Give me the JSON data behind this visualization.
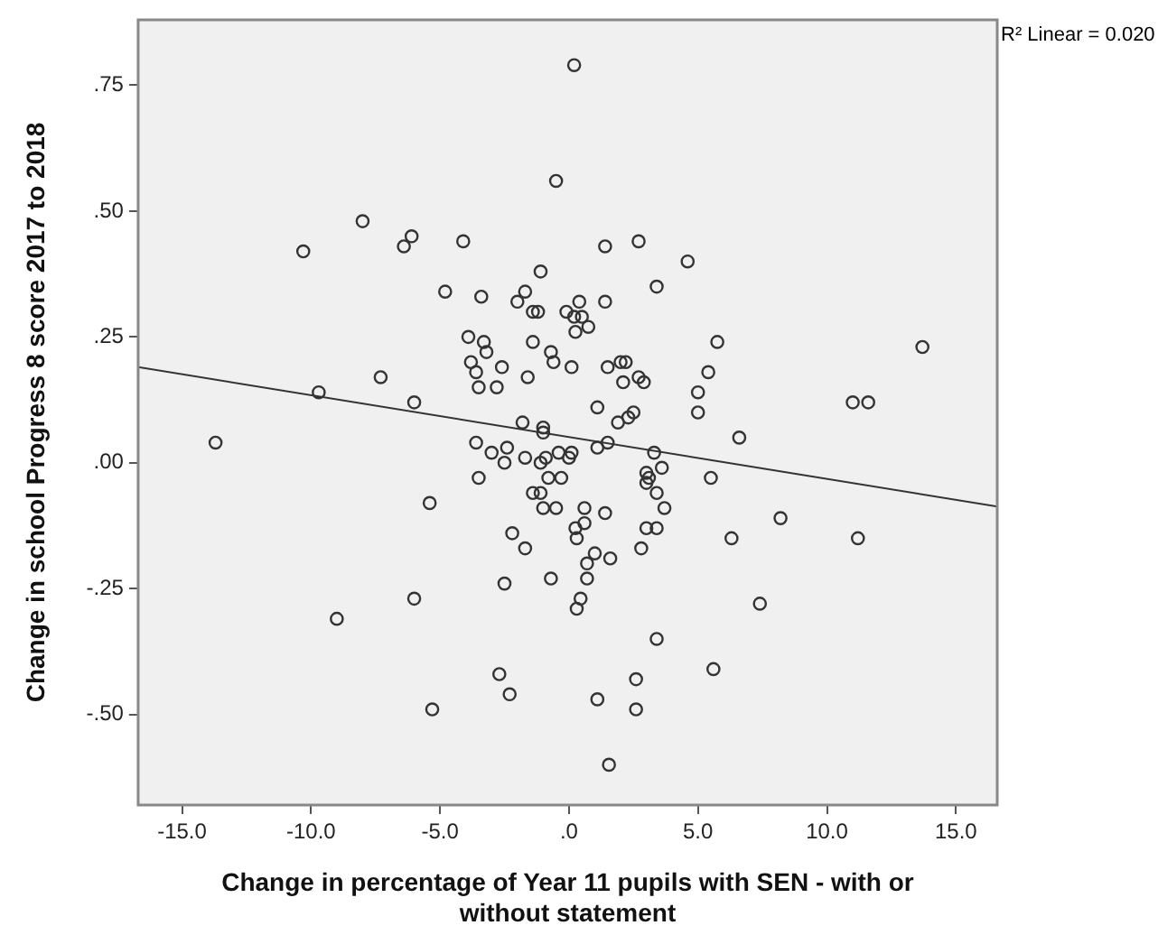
{
  "chart_data": {
    "type": "scatter",
    "xlabel": "Change in percentage of Year 11 pupils with SEN - with or without statement",
    "ylabel": "Change in school Progress 8 score 2017 to 2018",
    "xlim": [
      -16.7,
      16.6
    ],
    "ylim": [
      -0.68,
      0.88
    ],
    "xticks": [
      {
        "value": -15,
        "label": "-15.0"
      },
      {
        "value": -10,
        "label": "-10.0"
      },
      {
        "value": -5,
        "label": "-5.0"
      },
      {
        "value": 0,
        "label": ".0"
      },
      {
        "value": 5,
        "label": "5.0"
      },
      {
        "value": 10,
        "label": "10.0"
      },
      {
        "value": 15,
        "label": "15.0"
      }
    ],
    "yticks": [
      {
        "value": -0.5,
        "label": "-.50"
      },
      {
        "value": -0.25,
        "label": "-.25"
      },
      {
        "value": 0,
        "label": ".00"
      },
      {
        "value": 0.25,
        "label": ".25"
      },
      {
        "value": 0.5,
        "label": ".50"
      },
      {
        "value": 0.75,
        "label": ".75"
      }
    ],
    "grid": false,
    "legend": false,
    "annotations": [
      "R² Linear = 0.020"
    ],
    "series": [
      {
        "color": "#333333",
        "marker": "circle",
        "x": [
          0.2,
          -0.5,
          -10.3,
          -8.0,
          -6.4,
          -6.1,
          -4.1,
          -4.8,
          -3.4,
          -2.0,
          -1.7,
          -1.1,
          -1.4,
          -1.2,
          -0.1,
          0.4,
          0.2,
          0.5,
          0.75,
          0.25,
          1.4,
          1.4,
          2.7,
          4.6,
          3.4,
          5.75,
          5.4,
          5.0,
          5.0,
          6.6,
          -3.9,
          -3.3,
          -3.2,
          -3.8,
          -3.6,
          -3.5,
          -2.8,
          -2.6,
          -1.4,
          -1.6,
          -0.7,
          -0.6,
          0.1,
          1.5,
          2.0,
          2.2,
          2.1,
          2.7,
          2.9,
          1.1,
          1.9,
          2.3,
          2.5,
          -6.0,
          -9.7,
          -7.3,
          -1.8,
          -1.0,
          -1.0,
          -3.6,
          -3.0,
          -2.4,
          -2.5,
          -1.7,
          -1.1,
          -0.9,
          -0.4,
          0.0,
          0.1,
          1.1,
          1.5,
          3.3,
          3.6,
          -3.5,
          -0.8,
          -0.3,
          3.0,
          3.1,
          3.0,
          5.5,
          -5.4,
          -1.4,
          -1.1,
          -1.0,
          -0.5,
          0.6,
          1.4,
          0.25,
          0.6,
          0.3,
          3.0,
          3.4,
          3.4,
          3.7,
          2.8,
          -2.2,
          -1.7,
          6.3,
          1.0,
          0.7,
          1.6,
          0.7,
          -2.5,
          -0.7,
          0.45,
          0.3,
          -6.0,
          7.4,
          3.4,
          5.6,
          -2.7,
          2.6,
          -2.3,
          -5.3,
          1.1,
          2.6,
          1.55,
          -13.7,
          -9.0,
          8.2,
          11.2,
          11.0,
          11.6,
          13.7
        ],
        "values": [
          0.79,
          0.56,
          0.42,
          0.48,
          0.43,
          0.45,
          0.44,
          0.34,
          0.33,
          0.32,
          0.34,
          0.38,
          0.3,
          0.3,
          0.3,
          0.32,
          0.29,
          0.29,
          0.27,
          0.26,
          0.43,
          0.32,
          0.44,
          0.4,
          0.35,
          0.24,
          0.18,
          0.14,
          0.1,
          0.05,
          0.25,
          0.24,
          0.22,
          0.2,
          0.18,
          0.15,
          0.15,
          0.19,
          0.24,
          0.17,
          0.22,
          0.2,
          0.19,
          0.19,
          0.2,
          0.2,
          0.16,
          0.17,
          0.16,
          0.11,
          0.08,
          0.09,
          0.1,
          0.12,
          0.14,
          0.17,
          0.08,
          0.07,
          0.06,
          0.04,
          0.02,
          0.03,
          0.0,
          0.01,
          0.0,
          0.01,
          0.02,
          0.01,
          0.02,
          0.03,
          0.04,
          0.02,
          -0.01,
          -0.03,
          -0.03,
          -0.03,
          -0.02,
          -0.03,
          -0.04,
          -0.03,
          -0.08,
          -0.06,
          -0.06,
          -0.09,
          -0.09,
          -0.09,
          -0.1,
          -0.13,
          -0.12,
          -0.15,
          -0.13,
          -0.13,
          -0.06,
          -0.09,
          -0.17,
          -0.14,
          -0.17,
          -0.15,
          -0.18,
          -0.2,
          -0.19,
          -0.23,
          -0.24,
          -0.23,
          -0.27,
          -0.29,
          -0.27,
          -0.28,
          -0.35,
          -0.41,
          -0.42,
          -0.43,
          -0.46,
          -0.49,
          -0.47,
          -0.49,
          -0.6,
          0.04,
          -0.31,
          -0.11,
          -0.15,
          0.12,
          0.12,
          0.23
        ]
      },
      {
        "type": "line",
        "color": "#333333",
        "marker": "none",
        "x": [
          -16.7,
          16.6
        ],
        "values": [
          0.19,
          -0.087
        ]
      }
    ]
  }
}
